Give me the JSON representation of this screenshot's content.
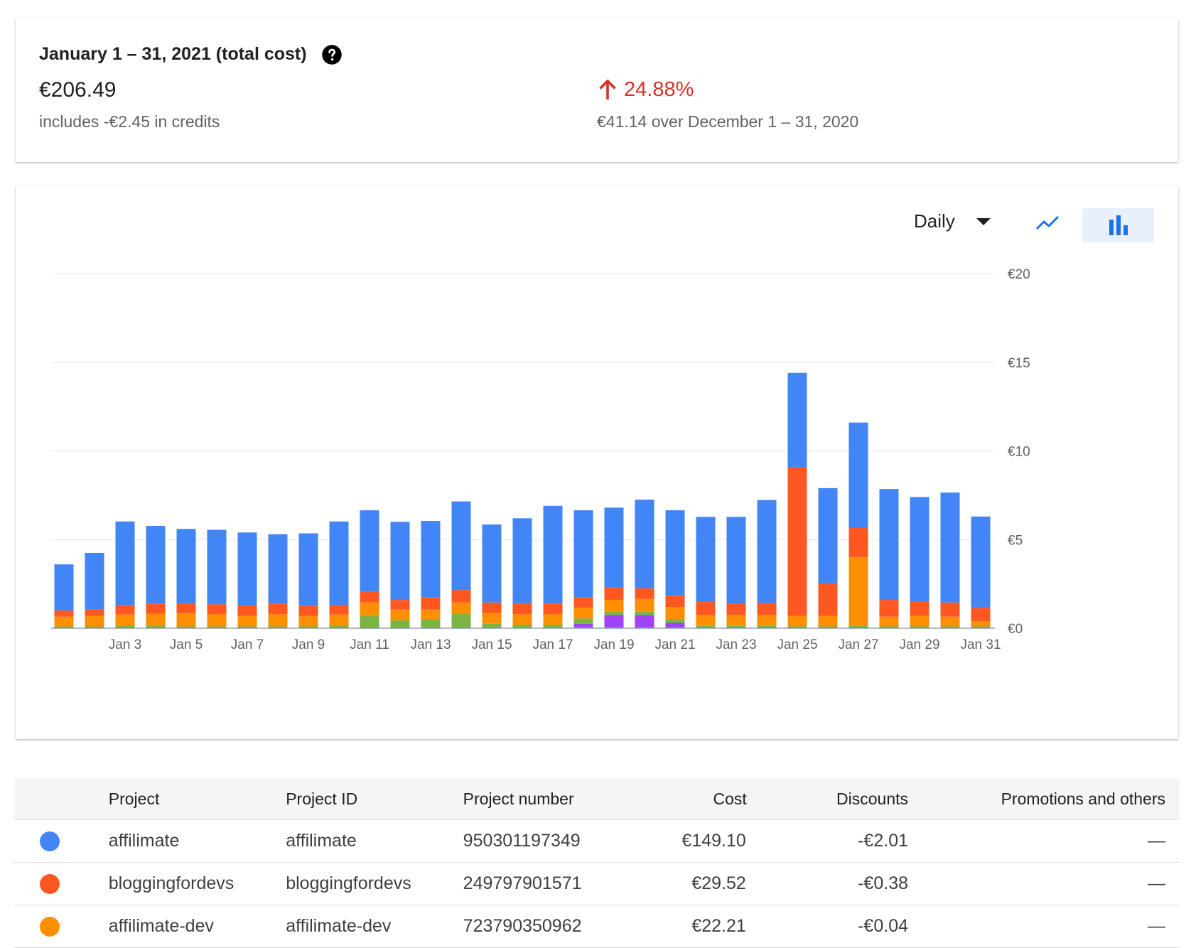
{
  "summary": {
    "title": "January 1 – 31, 2021 (total cost)",
    "total": "€206.49",
    "credits_note": "includes -€2.45 in credits",
    "change_percent": "24.88%",
    "change_note": "€41.14 over December 1 – 31, 2020",
    "change_color": "#d93025"
  },
  "controls": {
    "period": "Daily",
    "line_icon": "line-chart-icon",
    "bar_icon": "bar-chart-icon"
  },
  "chart_data": {
    "type": "bar",
    "stacked": true,
    "grid": true,
    "ylim": [
      0,
      20
    ],
    "y_ticks": [
      "€0",
      "€5",
      "€10",
      "€15",
      "€20"
    ],
    "y_tick_values": [
      0,
      5,
      10,
      15,
      20
    ],
    "x_tick_labels": [
      "Jan 3",
      "Jan 5",
      "Jan 7",
      "Jan 9",
      "Jan 11",
      "Jan 13",
      "Jan 15",
      "Jan 17",
      "Jan 19",
      "Jan 21",
      "Jan 23",
      "Jan 25",
      "Jan 27",
      "Jan 29",
      "Jan 31"
    ],
    "categories": [
      "Jan 1",
      "Jan 2",
      "Jan 3",
      "Jan 4",
      "Jan 5",
      "Jan 6",
      "Jan 7",
      "Jan 8",
      "Jan 9",
      "Jan 10",
      "Jan 11",
      "Jan 12",
      "Jan 13",
      "Jan 14",
      "Jan 15",
      "Jan 16",
      "Jan 17",
      "Jan 18",
      "Jan 19",
      "Jan 20",
      "Jan 21",
      "Jan 22",
      "Jan 23",
      "Jan 24",
      "Jan 25",
      "Jan 26",
      "Jan 27",
      "Jan 28",
      "Jan 29",
      "Jan 30",
      "Jan 31"
    ],
    "series": [
      {
        "name": "cyan",
        "color": "#12b5cb",
        "values": [
          0.02,
          0.02,
          0.02,
          0.02,
          0.02,
          0.02,
          0.02,
          0.02,
          0.02,
          0.02,
          0.05,
          0.05,
          0.05,
          0.05,
          0.05,
          0.05,
          0.05,
          0.05,
          0.05,
          0.05,
          0.05,
          0.05,
          0.05,
          0.05,
          0.05,
          0.05,
          0.05,
          0.05,
          0.05,
          0.05,
          0.05
        ]
      },
      {
        "name": "purple",
        "color": "#a142f4",
        "values": [
          0,
          0,
          0,
          0,
          0,
          0,
          0,
          0,
          0,
          0,
          0,
          0,
          0,
          0,
          0,
          0,
          0,
          0.2,
          0.7,
          0.7,
          0.25,
          0,
          0,
          0,
          0,
          0,
          0,
          0,
          0,
          0,
          0
        ]
      },
      {
        "name": "green",
        "color": "#7cb342",
        "values": [
          0.08,
          0.08,
          0.1,
          0.1,
          0.08,
          0.08,
          0.08,
          0.08,
          0.08,
          0.1,
          0.65,
          0.4,
          0.45,
          0.75,
          0.2,
          0.15,
          0.15,
          0.3,
          0.2,
          0.2,
          0.2,
          0.08,
          0.08,
          0.08,
          0.05,
          0.05,
          0.1,
          0.05,
          0.05,
          0.05,
          0.05
        ]
      },
      {
        "name": "affilimate-dev",
        "color": "#ff8f00",
        "values": [
          0.55,
          0.6,
          0.65,
          0.7,
          0.75,
          0.7,
          0.6,
          0.7,
          0.6,
          0.65,
          0.75,
          0.6,
          0.55,
          0.65,
          0.6,
          0.6,
          0.6,
          0.6,
          0.65,
          0.7,
          0.7,
          0.6,
          0.6,
          0.6,
          0.6,
          0.6,
          3.85,
          0.55,
          0.6,
          0.55,
          0.3
        ]
      },
      {
        "name": "bloggingfordevs",
        "color": "#ff5722",
        "values": [
          0.35,
          0.35,
          0.55,
          0.55,
          0.55,
          0.55,
          0.6,
          0.6,
          0.55,
          0.55,
          0.6,
          0.55,
          0.7,
          0.7,
          0.6,
          0.6,
          0.6,
          0.6,
          0.7,
          0.6,
          0.65,
          0.75,
          0.65,
          0.7,
          8.4,
          1.8,
          1.65,
          0.95,
          0.8,
          0.8,
          0.75
        ]
      },
      {
        "name": "affilimate",
        "color": "#4285f4",
        "values": [
          2.6,
          3.2,
          4.7,
          4.4,
          4.2,
          4.2,
          4.1,
          3.9,
          4.1,
          4.7,
          4.6,
          4.4,
          4.3,
          5.0,
          4.4,
          4.8,
          5.5,
          4.9,
          4.5,
          5.0,
          4.8,
          4.8,
          4.9,
          5.8,
          5.3,
          5.4,
          5.95,
          6.25,
          5.9,
          6.2,
          5.15
        ]
      }
    ]
  },
  "table": {
    "headers": [
      "Project",
      "Project ID",
      "Project number",
      "Cost",
      "Discounts",
      "Promotions and others"
    ],
    "rows": [
      {
        "color": "#4285f4",
        "project": "affilimate",
        "project_id": "affilimate",
        "number": "950301197349",
        "cost": "€149.10",
        "discounts": "-€2.01",
        "promotions": "—"
      },
      {
        "color": "#ff5722",
        "project": "bloggingfordevs",
        "project_id": "bloggingfordevs",
        "number": "249797901571",
        "cost": "€29.52",
        "discounts": "-€0.38",
        "promotions": "—"
      },
      {
        "color": "#ff8f00",
        "project": "affilimate-dev",
        "project_id": "affilimate-dev",
        "number": "723790350962",
        "cost": "€22.21",
        "discounts": "-€0.04",
        "promotions": "—"
      }
    ]
  }
}
